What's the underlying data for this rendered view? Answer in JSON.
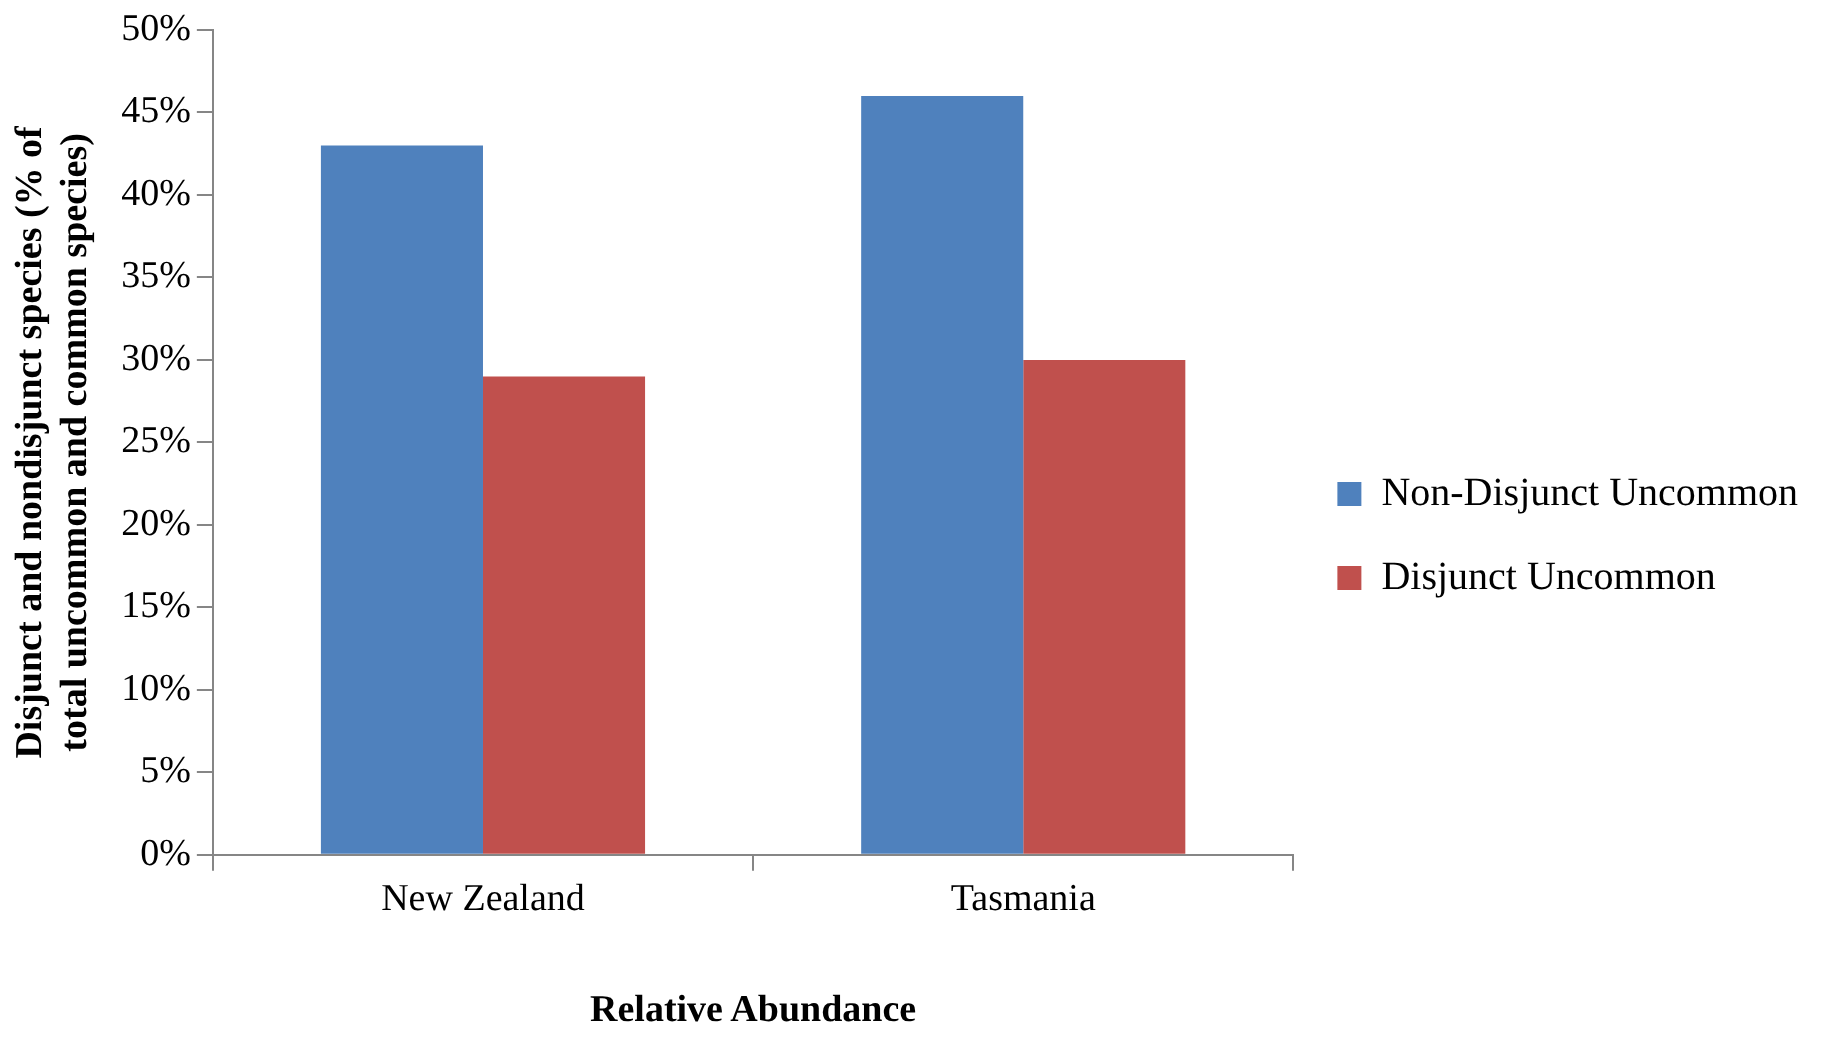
{
  "chart_data": {
    "type": "bar",
    "xlabel": "Relative Abundance",
    "ylabel": "Disjunct and nondisjunct species (% of total uncommon and common species)",
    "categories": [
      "New Zealand",
      "Tasmania"
    ],
    "series": [
      {
        "name": "Non-Disjunct Uncommon",
        "color": "#4f81bd",
        "values": [
          43,
          46
        ]
      },
      {
        "name": "Disjunct Uncommon",
        "color": "#c0504d",
        "values": [
          29,
          30
        ]
      }
    ],
    "ylim": [
      0,
      50
    ],
    "yticks": [
      {
        "value": 0,
        "label": "0%"
      },
      {
        "value": 5,
        "label": "5%"
      },
      {
        "value": 10,
        "label": "10%"
      },
      {
        "value": 15,
        "label": "15%"
      },
      {
        "value": 20,
        "label": "20%"
      },
      {
        "value": 25,
        "label": "25%"
      },
      {
        "value": 30,
        "label": "30%"
      },
      {
        "value": 35,
        "label": "35%"
      },
      {
        "value": 40,
        "label": "40%"
      },
      {
        "value": 45,
        "label": "45%"
      },
      {
        "value": 50,
        "label": "50%"
      }
    ],
    "grid": false,
    "legend": "right"
  }
}
